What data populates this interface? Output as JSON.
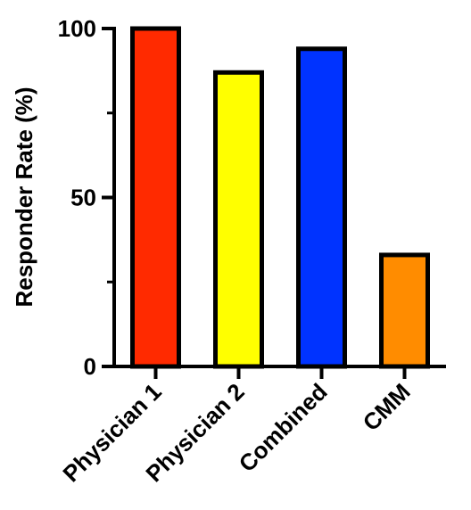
{
  "chart_data": {
    "type": "bar",
    "title": "",
    "xlabel": "",
    "ylabel": "Responder Rate (%)",
    "ylim": [
      0,
      100
    ],
    "yticks": [
      0,
      50,
      100
    ],
    "yticks_minor": [
      25,
      75
    ],
    "grid": false,
    "categories": [
      "Physician 1",
      "Physician 2",
      "Combined",
      "CMM"
    ],
    "values": [
      100,
      87,
      94,
      33
    ],
    "colors": [
      "#ff2a00",
      "#ffff00",
      "#0033ff",
      "#ff8c00"
    ]
  }
}
